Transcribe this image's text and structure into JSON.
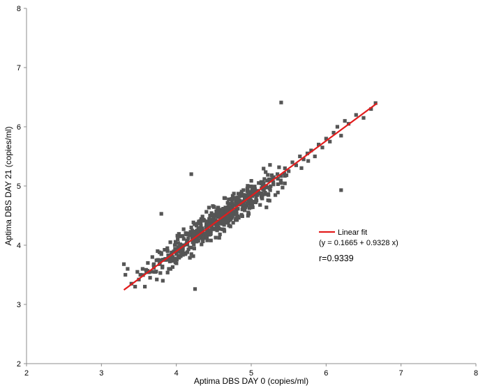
{
  "chart_data": {
    "type": "scatter",
    "xlabel": "Aptima DBS DAY 0 (copies/ml)",
    "ylabel": "Aptima DBS DAY 21 (copies/ml)",
    "xlim": [
      2,
      8
    ],
    "ylim": [
      2,
      8
    ],
    "xticks": [
      "2",
      "3",
      "4",
      "5",
      "6",
      "7",
      "8"
    ],
    "yticks": [
      "2",
      "3",
      "4",
      "5",
      "6",
      "7",
      "8"
    ],
    "grid": false,
    "point_color": "#555555",
    "line_color": "#e21d1d",
    "legend": {
      "placement": "right-middle",
      "label": "Linear fit",
      "equation": "(y = 0.1665 + 0.9328 x)"
    },
    "annotation": "r=0.9339",
    "fit": {
      "intercept": 0.1665,
      "slope": 0.9328,
      "x_range": [
        3.3,
        6.68
      ]
    },
    "n_points": 620,
    "series": [
      {
        "x": [
          3.3,
          3.32,
          3.35,
          3.4,
          3.45,
          3.48,
          3.5,
          3.52,
          3.55,
          3.58,
          3.6,
          3.62,
          3.65,
          3.68,
          3.7,
          3.72,
          3.75,
          3.78,
          3.8,
          3.82,
          3.85,
          3.88,
          3.9,
          3.92,
          3.95,
          3.98,
          4.0,
          4.05,
          4.1,
          4.15,
          4.2,
          4.25,
          4.3,
          4.35,
          4.4,
          4.45,
          4.5,
          4.55,
          4.6,
          4.65,
          4.7,
          4.75,
          4.8,
          4.85,
          4.9,
          4.95,
          5.0,
          5.05,
          5.1,
          5.15,
          5.2,
          5.25,
          5.3,
          5.35,
          5.4,
          5.45,
          5.5,
          5.55,
          5.6,
          5.65,
          5.7,
          5.75,
          5.8,
          5.85,
          5.9,
          5.95,
          6.0,
          6.05,
          6.1,
          6.15,
          6.2,
          6.25,
          6.3,
          6.4,
          6.5,
          6.6,
          6.66,
          4.25,
          5.4,
          6.2,
          3.8,
          4.2
        ],
        "y": [
          3.68,
          3.5,
          3.6,
          3.35,
          3.3,
          3.55,
          3.42,
          3.5,
          3.6,
          3.3,
          3.55,
          3.7,
          3.45,
          3.8,
          3.62,
          3.55,
          3.9,
          3.7,
          3.85,
          3.4,
          3.75,
          3.95,
          3.6,
          4.05,
          3.8,
          4.0,
          3.85,
          4.15,
          4.0,
          4.2,
          4.3,
          4.1,
          4.4,
          4.25,
          4.35,
          4.5,
          4.45,
          4.4,
          4.6,
          4.55,
          4.7,
          4.6,
          4.8,
          4.75,
          4.85,
          4.7,
          4.9,
          4.95,
          5.05,
          4.85,
          5.0,
          5.1,
          5.15,
          5.2,
          5.05,
          5.3,
          5.25,
          5.4,
          5.35,
          5.5,
          5.45,
          5.55,
          5.6,
          5.5,
          5.7,
          5.65,
          5.8,
          5.75,
          5.9,
          6.0,
          5.85,
          6.1,
          6.05,
          6.2,
          6.15,
          6.3,
          6.4,
          3.26,
          6.41,
          4.93,
          4.53,
          5.2
        ]
      }
    ]
  }
}
